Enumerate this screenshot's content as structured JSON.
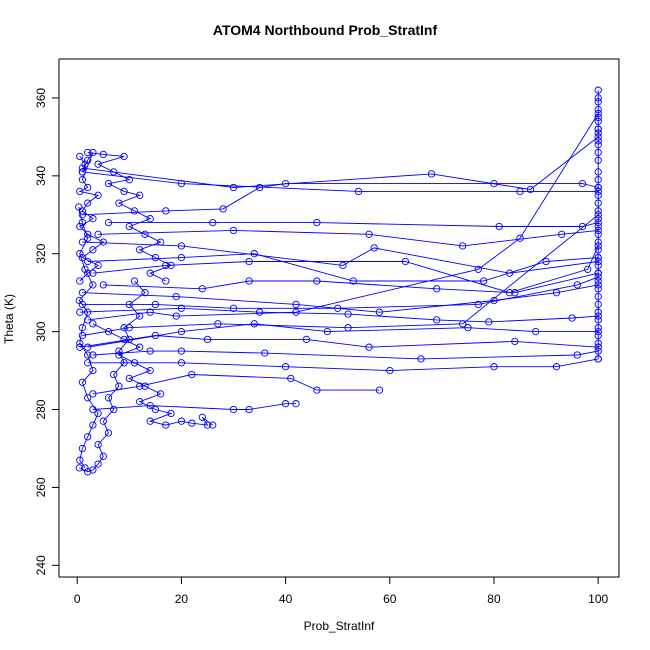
{
  "chart_data": {
    "type": "scatter",
    "title": "ATOM4 Northbound Prob_StratInf",
    "xlabel": "Prob_StratInf",
    "ylabel": "Theta (K)",
    "xlim": [
      -3.5,
      104
    ],
    "ylim": [
      237,
      370
    ],
    "xticks": [
      0,
      20,
      40,
      60,
      80,
      100
    ],
    "yticks": [
      240,
      260,
      280,
      300,
      320,
      340,
      360
    ],
    "grid": false,
    "legend": "none",
    "series_color": "#0000ff",
    "marker": "open-circle",
    "connected": true,
    "series": [
      {
        "name": "",
        "points": [
          [
            0.5,
            345
          ],
          [
            1.5,
            343
          ],
          [
            1,
            341
          ],
          [
            2,
            344
          ],
          [
            3,
            346
          ],
          [
            1,
            339
          ],
          [
            2,
            337
          ],
          [
            0.5,
            336
          ],
          [
            4,
            335
          ],
          [
            2,
            333
          ],
          [
            1,
            331
          ],
          [
            3,
            329
          ],
          [
            0.5,
            327
          ],
          [
            2,
            325
          ],
          [
            5,
            323
          ],
          [
            3,
            321
          ],
          [
            1,
            319
          ],
          [
            4,
            317
          ],
          [
            2,
            315
          ],
          [
            0.5,
            313
          ]
        ]
      },
      {
        "name": "",
        "points": [
          [
            0.3,
            332
          ],
          [
            1,
            328
          ],
          [
            2,
            324
          ],
          [
            0.5,
            320
          ],
          [
            1.5,
            316
          ],
          [
            3,
            312
          ],
          [
            0.4,
            308
          ],
          [
            2,
            305
          ],
          [
            1,
            301
          ],
          [
            0.5,
            297
          ],
          [
            2,
            294
          ],
          [
            3,
            290
          ],
          [
            1,
            287
          ],
          [
            2,
            283
          ],
          [
            4,
            279
          ],
          [
            3,
            276
          ],
          [
            2,
            273
          ],
          [
            1,
            270
          ],
          [
            0.5,
            267
          ],
          [
            1.5,
            265
          ]
        ]
      },
      {
        "name": "",
        "points": [
          [
            0.4,
            265
          ],
          [
            2,
            264
          ],
          [
            3,
            264.5
          ],
          [
            4,
            266
          ],
          [
            5,
            268
          ],
          [
            4,
            271
          ],
          [
            6,
            274
          ],
          [
            5,
            277
          ],
          [
            7,
            280
          ],
          [
            6,
            283
          ],
          [
            8,
            286
          ],
          [
            7,
            289
          ],
          [
            9,
            292
          ],
          [
            8,
            295
          ],
          [
            10,
            298
          ],
          [
            9,
            301
          ],
          [
            12,
            304
          ],
          [
            10,
            307
          ],
          [
            13,
            310
          ],
          [
            11,
            313
          ]
        ]
      },
      {
        "name": "",
        "points": [
          [
            2,
            346
          ],
          [
            5,
            345.5
          ],
          [
            9,
            345
          ],
          [
            4,
            343
          ],
          [
            7,
            341
          ],
          [
            10,
            339
          ],
          [
            6,
            338
          ],
          [
            9,
            336
          ],
          [
            12,
            335
          ],
          [
            8,
            333
          ],
          [
            11,
            331
          ],
          [
            14,
            329
          ],
          [
            10,
            327
          ],
          [
            13,
            325
          ],
          [
            16,
            323
          ],
          [
            12,
            321
          ],
          [
            15,
            319
          ],
          [
            18,
            317
          ],
          [
            14,
            315
          ],
          [
            17,
            313
          ]
        ]
      },
      {
        "name": "",
        "points": [
          [
            3,
            302
          ],
          [
            6,
            300
          ],
          [
            9,
            298
          ],
          [
            12,
            296
          ],
          [
            8,
            294
          ],
          [
            11,
            292
          ],
          [
            14,
            290
          ],
          [
            10,
            288
          ],
          [
            13,
            286
          ],
          [
            16,
            284
          ],
          [
            12,
            282
          ],
          [
            15,
            280
          ],
          [
            18,
            279
          ],
          [
            14,
            277
          ],
          [
            17,
            276
          ],
          [
            20,
            277
          ],
          [
            22,
            276.5
          ],
          [
            25,
            276
          ],
          [
            24,
            278
          ],
          [
            26,
            276
          ]
        ]
      },
      {
        "name": "",
        "points": [
          [
            1,
            330
          ],
          [
            17,
            331
          ],
          [
            28,
            331.5
          ],
          [
            35,
            337
          ],
          [
            40,
            338
          ],
          [
            80,
            338
          ],
          [
            97,
            338
          ],
          [
            100,
            337
          ]
        ]
      },
      {
        "name": "",
        "points": [
          [
            0.5,
            305
          ],
          [
            20,
            306
          ],
          [
            35,
            305
          ],
          [
            52,
            304.5
          ],
          [
            69,
            303
          ],
          [
            79,
            302.5
          ],
          [
            95,
            303.5
          ],
          [
            100,
            304
          ]
        ]
      },
      {
        "name": "",
        "points": [
          [
            1,
            341
          ],
          [
            20,
            338
          ],
          [
            54,
            336
          ],
          [
            85,
            336
          ],
          [
            100,
            336
          ]
        ]
      },
      {
        "name": "",
        "points": [
          [
            1,
            342
          ],
          [
            30,
            337
          ],
          [
            68,
            340.5
          ],
          [
            87,
            336.5
          ],
          [
            100,
            350
          ],
          [
            100,
            352
          ]
        ]
      },
      {
        "name": "",
        "points": [
          [
            1,
            323
          ],
          [
            20,
            322
          ],
          [
            51,
            317
          ],
          [
            57,
            321.5
          ],
          [
            83,
            315
          ],
          [
            100,
            318
          ]
        ]
      },
      {
        "name": "",
        "points": [
          [
            0.5,
            296
          ],
          [
            15,
            299
          ],
          [
            25,
            298
          ],
          [
            44,
            298
          ],
          [
            56,
            296
          ],
          [
            84,
            297.5
          ],
          [
            100,
            296
          ]
        ]
      },
      {
        "name": "",
        "points": [
          [
            3,
            284
          ],
          [
            12,
            286
          ],
          [
            22,
            289
          ],
          [
            41,
            288
          ],
          [
            46,
            285
          ],
          [
            58,
            285
          ]
        ]
      },
      {
        "name": "",
        "points": [
          [
            3,
            280
          ],
          [
            14,
            281
          ],
          [
            30,
            280
          ],
          [
            33,
            280
          ],
          [
            40,
            281.5
          ],
          [
            42,
            281.5
          ]
        ]
      },
      {
        "name": "",
        "points": [
          [
            2,
            296
          ],
          [
            20,
            300
          ],
          [
            34,
            302
          ],
          [
            48,
            300
          ],
          [
            75,
            301
          ],
          [
            88,
            300
          ],
          [
            100,
            300
          ]
        ]
      },
      {
        "name": "",
        "points": [
          [
            2,
            318
          ],
          [
            20,
            319
          ],
          [
            34,
            320
          ],
          [
            53,
            313
          ],
          [
            78,
            313
          ],
          [
            90,
            318
          ],
          [
            100,
            319
          ]
        ]
      },
      {
        "name": "",
        "points": [
          [
            1,
            310
          ],
          [
            19,
            309
          ],
          [
            42,
            307
          ],
          [
            58,
            305
          ],
          [
            80,
            308
          ],
          [
            92,
            310
          ],
          [
            100,
            312
          ]
        ]
      },
      {
        "name": "",
        "points": [
          [
            2,
            292
          ],
          [
            20,
            292
          ],
          [
            40,
            291
          ],
          [
            60,
            290
          ],
          [
            80,
            291
          ],
          [
            92,
            291
          ],
          [
            100,
            293
          ]
        ]
      },
      {
        "name": "",
        "points": [
          [
            3,
            294
          ],
          [
            14,
            295
          ],
          [
            20,
            295
          ],
          [
            36,
            294.5
          ],
          [
            66,
            293
          ],
          [
            96,
            294
          ],
          [
            100,
            295
          ]
        ]
      },
      {
        "name": "",
        "points": [
          [
            5,
            312
          ],
          [
            24,
            311
          ],
          [
            33,
            313
          ],
          [
            46,
            313
          ],
          [
            69,
            311
          ],
          [
            84,
            310
          ],
          [
            100,
            315
          ]
        ]
      },
      {
        "name": "",
        "points": [
          [
            4,
            325
          ],
          [
            30,
            326
          ],
          [
            56,
            325
          ],
          [
            74,
            322
          ],
          [
            93,
            325
          ],
          [
            100,
            326
          ]
        ]
      },
      {
        "name": "",
        "points": [
          [
            6,
            328
          ],
          [
            26,
            328
          ],
          [
            46,
            328
          ],
          [
            81,
            327
          ],
          [
            97,
            327
          ],
          [
            100,
            328
          ]
        ]
      },
      {
        "name": "",
        "points": [
          [
            1,
            299
          ],
          [
            10,
            301
          ],
          [
            27,
            302
          ],
          [
            52,
            301
          ],
          [
            74,
            302
          ],
          [
            100,
            330
          ]
        ]
      },
      {
        "name": "",
        "points": [
          [
            2,
            303
          ],
          [
            14,
            305
          ],
          [
            19,
            304
          ],
          [
            42,
            305
          ],
          [
            77,
            316
          ],
          [
            85,
            324
          ],
          [
            100,
            356
          ]
        ]
      },
      {
        "name": "",
        "points": [
          [
            3,
            315
          ],
          [
            17,
            317
          ],
          [
            33,
            318
          ],
          [
            63,
            318
          ],
          [
            83,
            310
          ],
          [
            98,
            316
          ],
          [
            100,
            322
          ]
        ]
      },
      {
        "name": "",
        "points": [
          [
            1,
            307
          ],
          [
            15,
            307
          ],
          [
            30,
            306
          ],
          [
            50,
            306
          ],
          [
            77,
            307
          ],
          [
            96,
            312
          ],
          [
            100,
            314
          ]
        ]
      },
      {
        "name": "",
        "points": [
          [
            100,
            362
          ],
          [
            100,
            360
          ],
          [
            100,
            359
          ],
          [
            100,
            357
          ],
          [
            100,
            355
          ],
          [
            100,
            354
          ],
          [
            100,
            352
          ],
          [
            100,
            351
          ],
          [
            100,
            349
          ],
          [
            100,
            348
          ],
          [
            100,
            346
          ],
          [
            100,
            344
          ],
          [
            100,
            341
          ],
          [
            100,
            339
          ],
          [
            100,
            337
          ],
          [
            100,
            335
          ],
          [
            100,
            333
          ],
          [
            100,
            331
          ],
          [
            100,
            329
          ],
          [
            100,
            327
          ],
          [
            100,
            325
          ],
          [
            100,
            323
          ],
          [
            100,
            321
          ],
          [
            100,
            319
          ],
          [
            100,
            317
          ],
          [
            100,
            315
          ],
          [
            100,
            313
          ],
          [
            100,
            311
          ],
          [
            100,
            309
          ],
          [
            100,
            307
          ],
          [
            100,
            305
          ],
          [
            100,
            303
          ],
          [
            100,
            301
          ],
          [
            100,
            299
          ],
          [
            100,
            297
          ],
          [
            100,
            293
          ]
        ]
      }
    ]
  }
}
